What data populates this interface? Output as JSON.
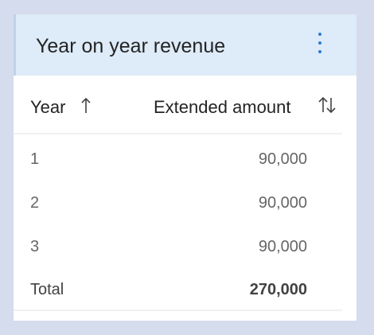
{
  "card": {
    "title": "Year on year revenue",
    "menu_icon": "more-vertical-icon"
  },
  "table": {
    "columns": [
      {
        "label": "Year",
        "sort": "ascending",
        "icon": "arrow-up-icon"
      },
      {
        "label": "Extended amount",
        "sort": "none",
        "icon": "sort-arrows-icon"
      }
    ],
    "rows": [
      {
        "year": "1",
        "amount": "90,000"
      },
      {
        "year": "2",
        "amount": "90,000"
      },
      {
        "year": "3",
        "amount": "90,000"
      }
    ],
    "total": {
      "label": "Total",
      "amount": "270,000"
    }
  },
  "colors": {
    "page_background": "#d4dced",
    "header_background": "#deebf8",
    "accent": "#2b7bd3"
  }
}
